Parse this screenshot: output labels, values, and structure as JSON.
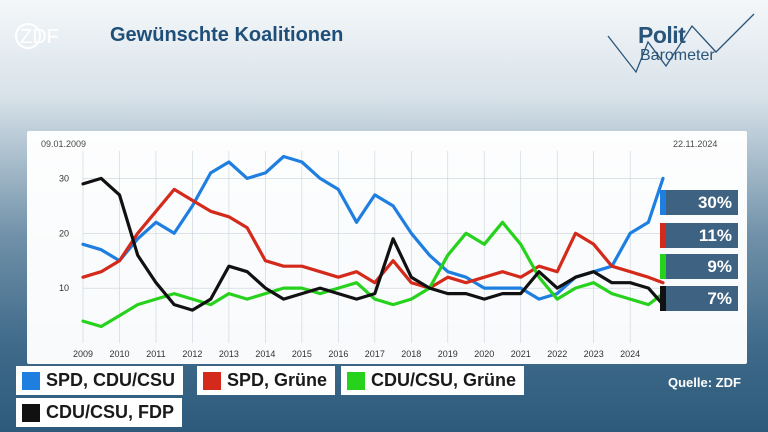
{
  "header": {
    "title": "Gewünschte Koalitionen",
    "logo_text": "ZDF",
    "brand_top": "Polit",
    "brand_bottom": "Barometer"
  },
  "dates": {
    "start": "09.01.2009",
    "end": "22.11.2024"
  },
  "source": "Quelle: ZDF",
  "chart_data": {
    "type": "line",
    "title": "Gewünschte Koalitionen",
    "xlim": [
      2009.0,
      2024.9
    ],
    "ylim": [
      0,
      35
    ],
    "x_ticks": [
      "2009",
      "2010",
      "2011",
      "2012",
      "2013",
      "2014",
      "2015",
      "2016",
      "2017",
      "2018",
      "2019",
      "2020",
      "2021",
      "2022",
      "2023",
      "2024"
    ],
    "y_ticks": [
      10,
      20,
      30
    ],
    "grid": true,
    "legend_position": "bottom-left",
    "end_labels": [
      "30%",
      "11%",
      "9%",
      "7%"
    ],
    "series": [
      {
        "name": "SPD, CDU/CSU",
        "color": "#1f7fe0",
        "x": [
          2009.0,
          2009.5,
          2010.0,
          2010.5,
          2011.0,
          2011.5,
          2012.0,
          2012.5,
          2013.0,
          2013.5,
          2014.0,
          2014.5,
          2015.0,
          2015.5,
          2016.0,
          2016.5,
          2017.0,
          2017.5,
          2018.0,
          2018.5,
          2019.0,
          2019.5,
          2020.0,
          2020.5,
          2021.0,
          2021.5,
          2022.0,
          2022.5,
          2023.0,
          2023.5,
          2024.0,
          2024.5,
          2024.9
        ],
        "values": [
          18,
          17,
          15,
          19,
          22,
          20,
          25,
          31,
          33,
          30,
          31,
          34,
          33,
          30,
          28,
          22,
          27,
          25,
          20,
          16,
          13,
          12,
          10,
          10,
          10,
          8,
          9,
          12,
          13,
          14,
          20,
          22,
          30
        ]
      },
      {
        "name": "SPD, Grüne",
        "color": "#d42a1c",
        "x": [
          2009.0,
          2009.5,
          2010.0,
          2010.5,
          2011.0,
          2011.5,
          2012.0,
          2012.5,
          2013.0,
          2013.5,
          2014.0,
          2014.5,
          2015.0,
          2015.5,
          2016.0,
          2016.5,
          2017.0,
          2017.5,
          2018.0,
          2018.5,
          2019.0,
          2019.5,
          2020.0,
          2020.5,
          2021.0,
          2021.5,
          2022.0,
          2022.5,
          2023.0,
          2023.5,
          2024.0,
          2024.5,
          2024.9
        ],
        "values": [
          12,
          13,
          15,
          20,
          24,
          28,
          26,
          24,
          23,
          21,
          15,
          14,
          14,
          13,
          12,
          13,
          11,
          15,
          11,
          10,
          12,
          11,
          12,
          13,
          12,
          14,
          13,
          20,
          18,
          14,
          13,
          12,
          11
        ]
      },
      {
        "name": "CDU/CSU, Grüne",
        "color": "#27d21c",
        "x": [
          2009.0,
          2009.5,
          2010.0,
          2010.5,
          2011.0,
          2011.5,
          2012.0,
          2012.5,
          2013.0,
          2013.5,
          2014.0,
          2014.5,
          2015.0,
          2015.5,
          2016.0,
          2016.5,
          2017.0,
          2017.5,
          2018.0,
          2018.5,
          2019.0,
          2019.5,
          2020.0,
          2020.5,
          2021.0,
          2021.5,
          2022.0,
          2022.5,
          2023.0,
          2023.5,
          2024.0,
          2024.5,
          2024.9
        ],
        "values": [
          4,
          3,
          5,
          7,
          8,
          9,
          8,
          7,
          9,
          8,
          9,
          10,
          10,
          9,
          10,
          11,
          8,
          7,
          8,
          10,
          16,
          20,
          18,
          22,
          18,
          12,
          8,
          10,
          11,
          9,
          8,
          7,
          9
        ]
      },
      {
        "name": "CDU/CSU, FDP",
        "color": "#111111",
        "x": [
          2009.0,
          2009.5,
          2010.0,
          2010.5,
          2011.0,
          2011.5,
          2012.0,
          2012.5,
          2013.0,
          2013.5,
          2014.0,
          2014.5,
          2015.0,
          2015.5,
          2016.0,
          2016.5,
          2017.0,
          2017.5,
          2018.0,
          2018.5,
          2019.0,
          2019.5,
          2020.0,
          2020.5,
          2021.0,
          2021.5,
          2022.0,
          2022.5,
          2023.0,
          2023.5,
          2024.0,
          2024.5,
          2024.9
        ],
        "values": [
          29,
          30,
          27,
          16,
          11,
          7,
          6,
          8,
          14,
          13,
          10,
          8,
          9,
          10,
          9,
          8,
          9,
          19,
          12,
          10,
          9,
          9,
          8,
          9,
          9,
          13,
          10,
          12,
          13,
          11,
          11,
          10,
          7
        ]
      }
    ]
  }
}
